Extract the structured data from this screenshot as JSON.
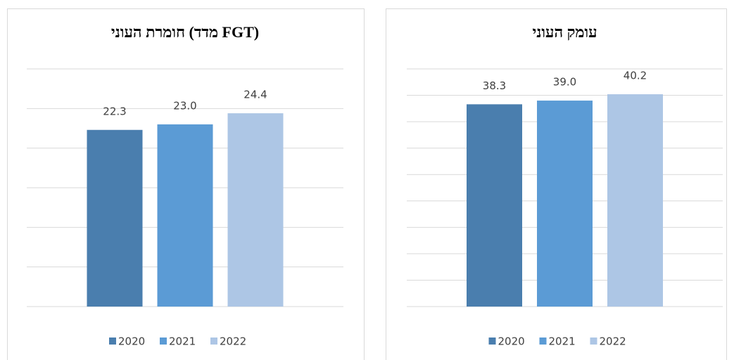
{
  "chart_data": [
    {
      "type": "bar",
      "title": "חומרת העוני (מדד FGT)",
      "series": [
        {
          "name": "2020",
          "color": "#4a7eae",
          "values": [
            22.3
          ]
        },
        {
          "name": "2021",
          "color": "#5b9bd5",
          "values": [
            23.0
          ],
          "value_labels": [
            "23.0"
          ]
        },
        {
          "name": "2022",
          "color": "#adc6e5",
          "values": [
            24.4
          ]
        }
      ],
      "ylim": [
        0,
        30
      ],
      "yticks": [
        0,
        5,
        10,
        15,
        20,
        25,
        30
      ],
      "grid": true,
      "legend": "bottom"
    },
    {
      "type": "bar",
      "title": "עומק העוני",
      "series": [
        {
          "name": "2020",
          "color": "#4a7eae",
          "values": [
            38.3
          ]
        },
        {
          "name": "2021",
          "color": "#5b9bd5",
          "values": [
            39.0
          ],
          "value_labels": [
            "39.0"
          ]
        },
        {
          "name": "2022",
          "color": "#adc6e5",
          "values": [
            40.2
          ]
        }
      ],
      "ylim": [
        0,
        45
      ],
      "yticks": [
        0,
        5,
        10,
        15,
        20,
        25,
        30,
        35,
        40,
        45
      ],
      "grid": true,
      "legend": "bottom"
    }
  ]
}
